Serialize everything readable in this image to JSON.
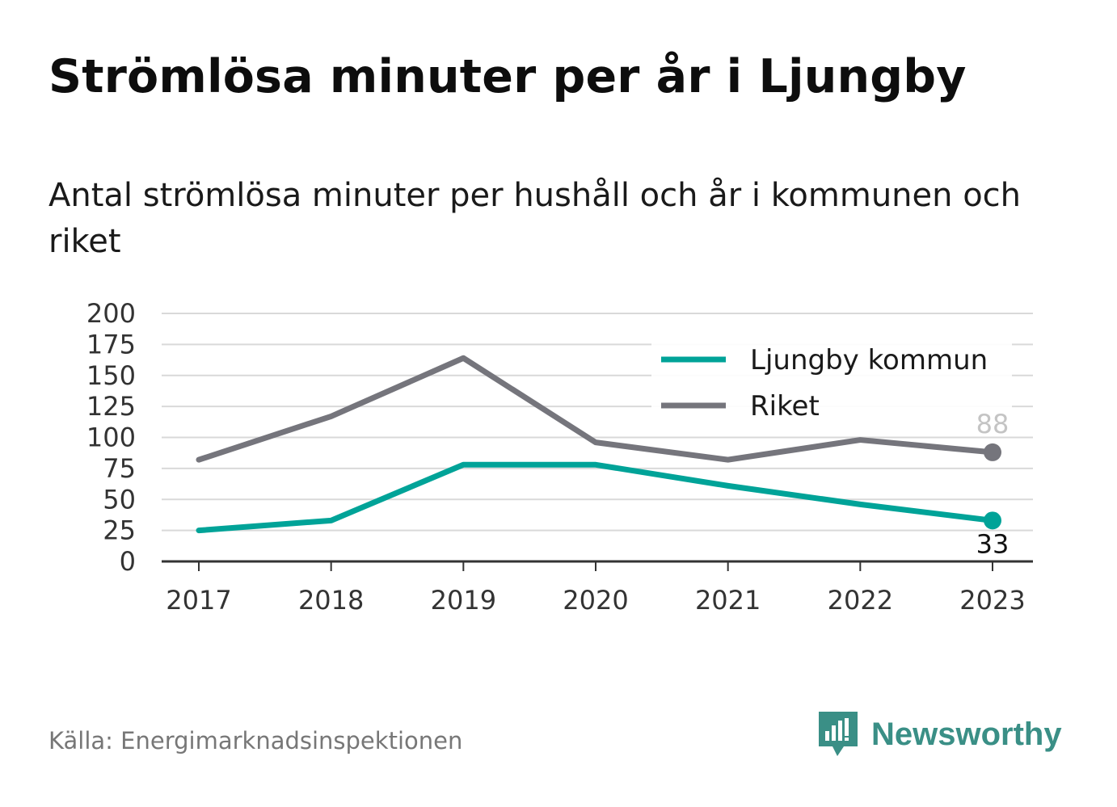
{
  "header": {
    "title": "Strömlösa minuter per år i Ljungby",
    "subtitle": "Antal strömlösa minuter per hushåll och år i kommunen och riket"
  },
  "footer": {
    "source": "Källa: Energimarknadsinspektionen",
    "brand": "Newsworthy",
    "brand_icon": "bar-chart-speech-bubble-icon"
  },
  "colors": {
    "ljungby": "#00a398",
    "riket": "#75757c",
    "grid": "#d9d9d9",
    "axis": "#333333",
    "brand": "#3a8f86"
  },
  "chart_data": {
    "type": "line",
    "x": [
      "2017",
      "2018",
      "2019",
      "2020",
      "2021",
      "2022",
      "2023"
    ],
    "ylim": [
      0,
      200
    ],
    "yticks": [
      0,
      25,
      50,
      75,
      100,
      125,
      150,
      175,
      200
    ],
    "grid": true,
    "legend_placement": "top-right",
    "series": [
      {
        "name": "Ljungby kommun",
        "values": [
          25,
          33,
          78,
          78,
          61,
          46,
          33
        ],
        "end_label": "33"
      },
      {
        "name": "Riket",
        "values": [
          82,
          117,
          164,
          96,
          82,
          98,
          88
        ],
        "end_label": "88"
      }
    ]
  }
}
